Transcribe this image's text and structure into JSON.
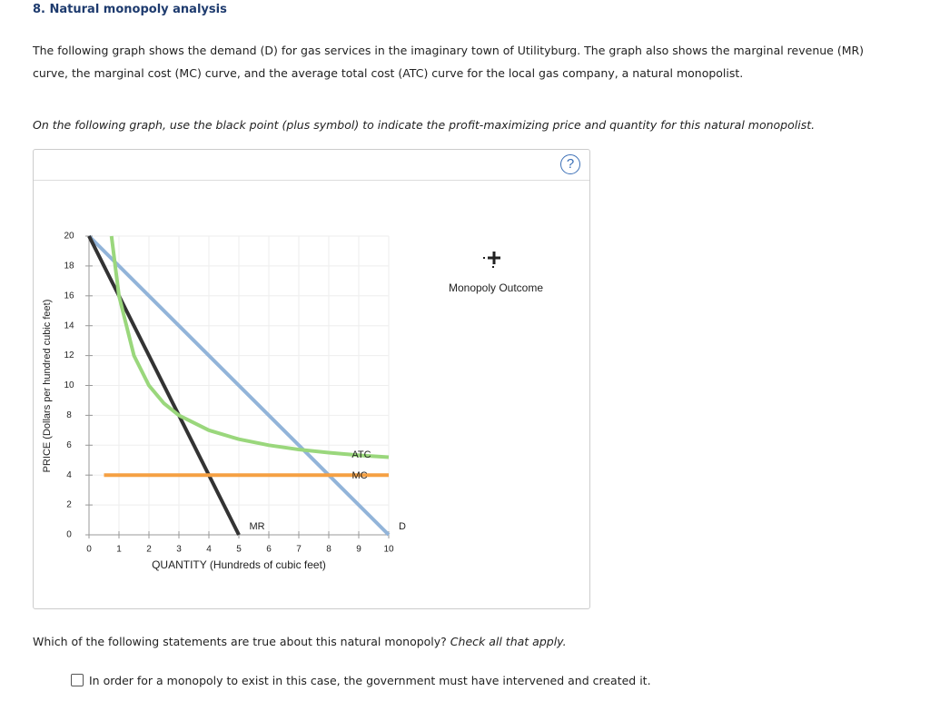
{
  "title": "8. Natural monopoly analysis",
  "intro": "The following graph shows the demand (D) for gas services in the imaginary town of Utilityburg. The graph also shows the marginal revenue (MR) curve, the marginal cost (MC) curve, and the average total cost (ATC) curve for the local gas company, a natural monopolist.",
  "instruction": "On the following graph, use the black point (plus symbol) to indicate the profit-maximizing price and quantity for this natural monopolist.",
  "help_icon": "?",
  "chart_data": {
    "type": "line",
    "xlabel": "QUANTITY (Hundreds of cubic feet)",
    "ylabel": "PRICE (Dollars per hundred cubic feet)",
    "xlim": [
      0,
      10
    ],
    "ylim": [
      0,
      20
    ],
    "xticks": [
      0,
      1,
      2,
      3,
      4,
      5,
      6,
      7,
      8,
      9,
      10
    ],
    "yticks": [
      0,
      2,
      4,
      6,
      8,
      10,
      12,
      14,
      16,
      18,
      20
    ],
    "grid": true,
    "series": [
      {
        "name": "D",
        "color": "#92b4d9",
        "x": [
          0,
          10
        ],
        "values": [
          20,
          0
        ]
      },
      {
        "name": "MR",
        "color": "#333333",
        "x": [
          0,
          5
        ],
        "values": [
          20,
          0
        ]
      },
      {
        "name": "MC",
        "color": "#f5a043",
        "x": [
          0.5,
          10
        ],
        "values": [
          4,
          4
        ]
      },
      {
        "name": "ATC",
        "color": "#9ad77c",
        "x": [
          0.75,
          1,
          1.5,
          2,
          2.5,
          3,
          4,
          5,
          6,
          7,
          8,
          9,
          10
        ],
        "values": [
          20,
          16,
          12,
          10,
          8.8,
          8,
          7,
          6.4,
          6,
          5.71,
          5.5,
          5.33,
          5.2
        ]
      }
    ]
  },
  "tool_label": "Monopoly Outcome",
  "question": {
    "text": "Which of the following statements are true about this natural monopoly?",
    "emphasis": "Check all that apply."
  },
  "options": [
    "In order for a monopoly to exist in this case, the government must have intervened and created it."
  ]
}
